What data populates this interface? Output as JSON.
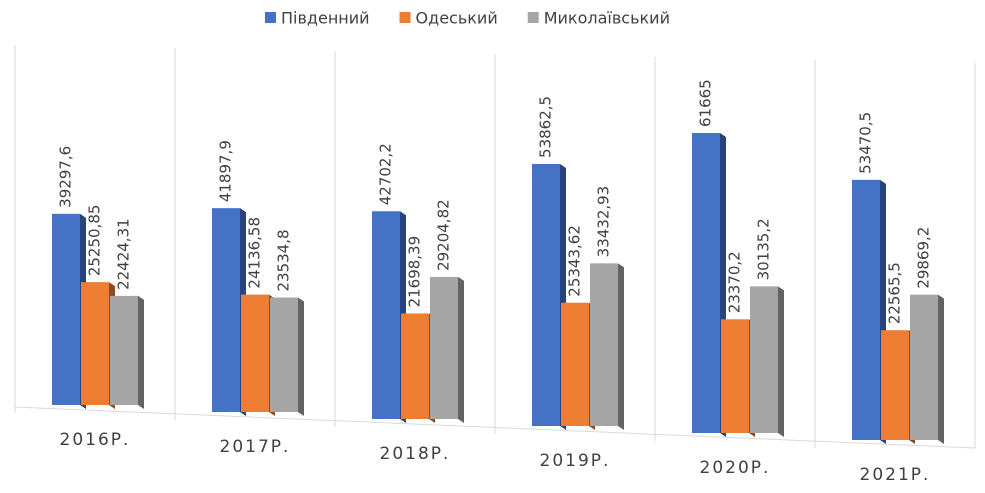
{
  "chart_data": {
    "type": "bar",
    "categories": [
      "2016Р.",
      "2017Р.",
      "2018Р.",
      "2019Р.",
      "2020Р.",
      "2021Р."
    ],
    "series": [
      {
        "name": "Південний",
        "color": "#4472c4",
        "values": [
          39297.6,
          41897.9,
          42702.2,
          53862.5,
          61665,
          53470.5
        ],
        "value_labels": [
          "39297,6",
          "41897,9",
          "42702,2",
          "53862,5",
          "61665",
          "53470,5"
        ]
      },
      {
        "name": "Одеський",
        "color": "#ed7d31",
        "values": [
          25250.85,
          24136.58,
          21698.39,
          25343.62,
          23370.2,
          22565.5
        ],
        "value_labels": [
          "25250,85",
          "24136,58",
          "21698,39",
          "25343,62",
          "23370,2",
          "22565,5"
        ]
      },
      {
        "name": "Миколаївський",
        "color": "#a5a5a5",
        "values": [
          22424.31,
          23534.8,
          29204.82,
          33432.93,
          30135.2,
          29869.2
        ],
        "value_labels": [
          "22424,31",
          "23534,8",
          "29204,82",
          "33432,93",
          "30135,2",
          "29869,2"
        ]
      }
    ],
    "legend": "top"
  }
}
